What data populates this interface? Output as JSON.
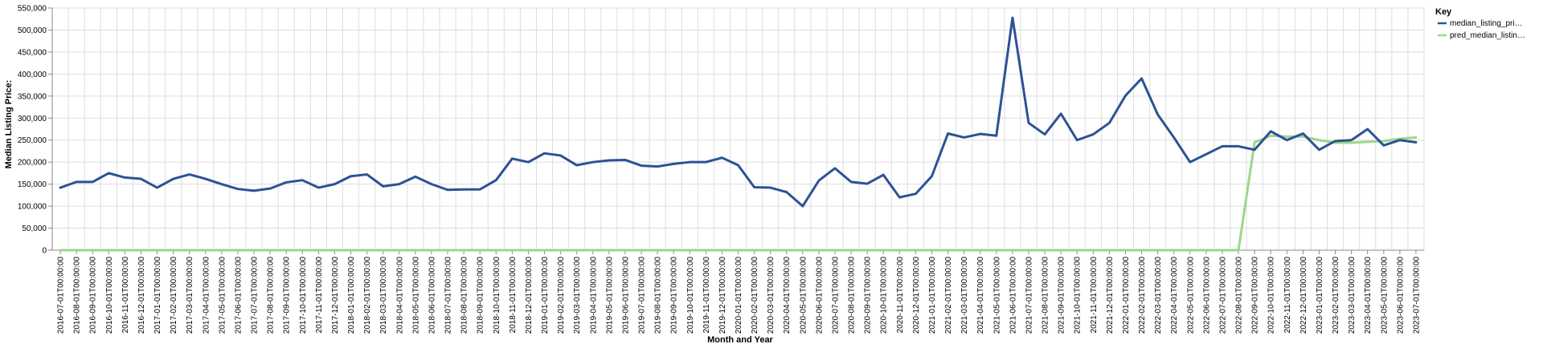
{
  "chart_data": {
    "type": "line",
    "xlabel": "Month and Year",
    "ylabel": "Median Listing Price:",
    "ylim": [
      0,
      550000
    ],
    "yticks": [
      0,
      50000,
      100000,
      150000,
      200000,
      250000,
      300000,
      350000,
      400000,
      450000,
      500000,
      550000
    ],
    "ytick_labels": [
      "0",
      "50,000",
      "100,000",
      "150,000",
      "200,000",
      "250,000",
      "300,000",
      "350,000",
      "400,000",
      "450,000",
      "500,000",
      "550,000"
    ],
    "grid": true,
    "legend": {
      "title": "Key",
      "position": "top-right"
    },
    "x": [
      "2016-07-01T00:00:00",
      "2016-08-01T00:00:00",
      "2016-09-01T00:00:00",
      "2016-10-01T00:00:00",
      "2016-11-01T00:00:00",
      "2016-12-01T00:00:00",
      "2017-01-01T00:00:00",
      "2017-02-01T00:00:00",
      "2017-03-01T00:00:00",
      "2017-04-01T00:00:00",
      "2017-05-01T00:00:00",
      "2017-06-01T00:00:00",
      "2017-07-01T00:00:00",
      "2017-08-01T00:00:00",
      "2017-09-01T00:00:00",
      "2017-10-01T00:00:00",
      "2017-11-01T00:00:00",
      "2017-12-01T00:00:00",
      "2018-01-01T00:00:00",
      "2018-02-01T00:00:00",
      "2018-03-01T00:00:00",
      "2018-04-01T00:00:00",
      "2018-05-01T00:00:00",
      "2018-06-01T00:00:00",
      "2018-07-01T00:00:00",
      "2018-08-01T00:00:00",
      "2018-09-01T00:00:00",
      "2018-10-01T00:00:00",
      "2018-11-01T00:00:00",
      "2018-12-01T00:00:00",
      "2019-01-01T00:00:00",
      "2019-02-01T00:00:00",
      "2019-03-01T00:00:00",
      "2019-04-01T00:00:00",
      "2019-05-01T00:00:00",
      "2019-06-01T00:00:00",
      "2019-07-01T00:00:00",
      "2019-08-01T00:00:00",
      "2019-09-01T00:00:00",
      "2019-10-01T00:00:00",
      "2019-11-01T00:00:00",
      "2019-12-01T00:00:00",
      "2020-01-01T00:00:00",
      "2020-02-01T00:00:00",
      "2020-03-01T00:00:00",
      "2020-04-01T00:00:00",
      "2020-05-01T00:00:00",
      "2020-06-01T00:00:00",
      "2020-07-01T00:00:00",
      "2020-08-01T00:00:00",
      "2020-09-01T00:00:00",
      "2020-10-01T00:00:00",
      "2020-11-01T00:00:00",
      "2020-12-01T00:00:00",
      "2021-01-01T00:00:00",
      "2021-02-01T00:00:00",
      "2021-03-01T00:00:00",
      "2021-04-01T00:00:00",
      "2021-05-01T00:00:00",
      "2021-06-01T00:00:00",
      "2021-07-01T00:00:00",
      "2021-08-01T00:00:00",
      "2021-09-01T00:00:00",
      "2021-10-01T00:00:00",
      "2021-11-01T00:00:00",
      "2021-12-01T00:00:00",
      "2022-01-01T00:00:00",
      "2022-02-01T00:00:00",
      "2022-03-01T00:00:00",
      "2022-04-01T00:00:00",
      "2022-05-01T00:00:00",
      "2022-06-01T00:00:00",
      "2022-07-01T00:00:00",
      "2022-08-01T00:00:00",
      "2022-09-01T00:00:00",
      "2022-10-01T00:00:00",
      "2022-11-01T00:00:00",
      "2022-12-01T00:00:00",
      "2023-01-01T00:00:00",
      "2023-02-01T00:00:00",
      "2023-03-01T00:00:00",
      "2023-04-01T00:00:00",
      "2023-05-01T00:00:00",
      "2023-06-01T00:00:00",
      "2023-07-01T00:00:00"
    ],
    "series": [
      {
        "name": "median_listing_pri…",
        "color": "#2c5296",
        "values": [
          142000,
          155000,
          155000,
          175000,
          165000,
          162000,
          142000,
          162000,
          172000,
          162000,
          150000,
          139000,
          135000,
          140000,
          154000,
          159000,
          142000,
          150000,
          168000,
          172000,
          145000,
          150000,
          167000,
          150000,
          137000,
          138000,
          138000,
          159000,
          208000,
          200000,
          220000,
          215000,
          193000,
          200000,
          204000,
          205000,
          192000,
          190000,
          196000,
          200000,
          200000,
          210000,
          193000,
          143000,
          142000,
          132000,
          100000,
          158000,
          186000,
          155000,
          151000,
          171000,
          120000,
          128000,
          168000,
          265000,
          256000,
          264000,
          260000,
          528000,
          289000,
          263000,
          310000,
          250000,
          263000,
          289000,
          351000,
          390000,
          308000,
          256000,
          200000,
          218000,
          236000,
          236000,
          228000,
          270000,
          250000,
          265000,
          228000,
          248000,
          250000,
          275000,
          238000,
          250000,
          245000
        ]
      },
      {
        "name": "pred_median_listin…",
        "color": "#9ed68b",
        "values": [
          0,
          0,
          0,
          0,
          0,
          0,
          0,
          0,
          0,
          0,
          0,
          0,
          0,
          0,
          0,
          0,
          0,
          0,
          0,
          0,
          0,
          0,
          0,
          0,
          0,
          0,
          0,
          0,
          0,
          0,
          0,
          0,
          0,
          0,
          0,
          0,
          0,
          0,
          0,
          0,
          0,
          0,
          0,
          0,
          0,
          0,
          0,
          0,
          0,
          0,
          0,
          0,
          0,
          0,
          0,
          0,
          0,
          0,
          0,
          0,
          0,
          0,
          0,
          0,
          0,
          0,
          0,
          0,
          0,
          0,
          0,
          0,
          0,
          0,
          245000,
          260000,
          258000,
          258000,
          250000,
          244000,
          244000,
          246000,
          248000,
          253000,
          256000
        ]
      }
    ]
  }
}
